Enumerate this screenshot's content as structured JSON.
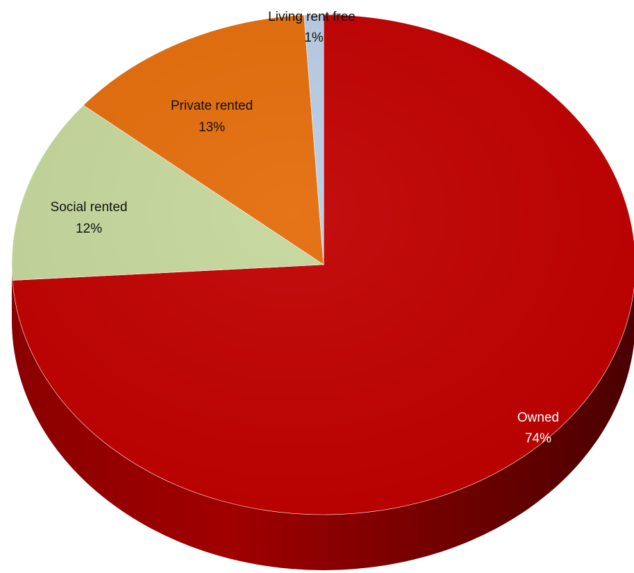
{
  "chart_data": {
    "type": "pie",
    "title": "",
    "categories": [
      "Owned",
      "Social rented",
      "Private rented",
      "Living rent free"
    ],
    "values": [
      74,
      12,
      13,
      1
    ],
    "value_labels": [
      "74%",
      "12%",
      "13%",
      "1%"
    ],
    "colors": [
      "#c00000",
      "#c4d79b",
      "#e46c0a",
      "#b8cce4"
    ],
    "start_angle_deg": 0,
    "direction": "clockwise",
    "style": "3d",
    "legend": "none"
  }
}
